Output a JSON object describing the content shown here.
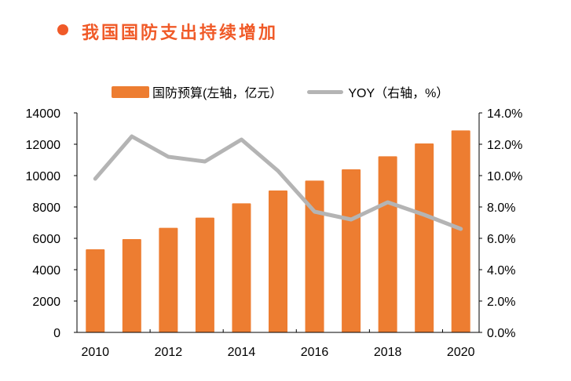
{
  "title": "我国国防支出持续增加",
  "colors": {
    "title": "#f05a28",
    "bar": "#ed7d31",
    "line": "#b4b4b4",
    "axis": "#000000"
  },
  "chart_data": {
    "type": "bar+line",
    "title": "我国国防支出持续增加",
    "categories": [
      "2010",
      "2011",
      "2012",
      "2013",
      "2014",
      "2015",
      "2016",
      "2017",
      "2018",
      "2019",
      "2020"
    ],
    "x_tick_labels": [
      "2010",
      "2012",
      "2014",
      "2016",
      "2018",
      "2020"
    ],
    "series": [
      {
        "name": "国防预算(左轴，亿元）",
        "type": "bar",
        "axis": "left",
        "values": [
          5300,
          5950,
          6670,
          7320,
          8230,
          9050,
          9680,
          10400,
          11230,
          12050,
          12880
        ]
      },
      {
        "name": "YOY（右轴，%）",
        "type": "line",
        "axis": "right",
        "values": [
          9.8,
          12.5,
          11.2,
          10.9,
          12.3,
          10.3,
          7.7,
          7.2,
          8.3,
          7.5,
          6.6
        ]
      }
    ],
    "left_axis": {
      "ylim": [
        0,
        14000
      ],
      "ticks": [
        "0",
        "2000",
        "4000",
        "6000",
        "8000",
        "10000",
        "12000",
        "14000"
      ]
    },
    "right_axis": {
      "ylim": [
        0,
        14
      ],
      "ticks": [
        "0.0%",
        "2.0%",
        "4.0%",
        "6.0%",
        "8.0%",
        "10.0%",
        "12.0%",
        "14.0%"
      ]
    },
    "legend": "top",
    "grid": false
  }
}
